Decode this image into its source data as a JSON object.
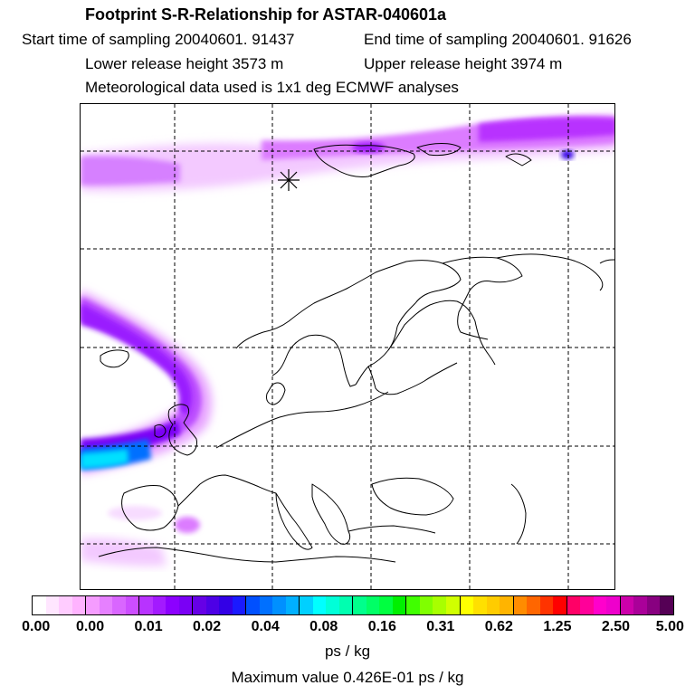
{
  "header": {
    "title": "Footprint S-R-Relationship for ASTAR-040601a",
    "start_time": "Start time of sampling 20040601. 91437",
    "end_time": "End time of sampling 20040601. 91626",
    "lower_release": "Lower release height 3573 m",
    "upper_release": "Upper release height 3974 m",
    "met_data": "Meteorological data used is 1x1 deg ECMWF analyses"
  },
  "map": {
    "region": "Europe / North Atlantic / Arctic",
    "receptor_marker": "asterisk"
  },
  "colorbar": {
    "tick_labels": [
      "0.00",
      "0.00",
      "0.01",
      "0.02",
      "0.04",
      "0.08",
      "0.16",
      "0.31",
      "0.62",
      "1.25",
      "2.50",
      "5.00"
    ],
    "colors": [
      "#ffffff",
      "#ffe6ff",
      "#ffccff",
      "#ffb3ff",
      "#f59cff",
      "#e680ff",
      "#d966ff",
      "#cc4dff",
      "#b833ff",
      "#a31aff",
      "#8c00ff",
      "#7a00f5",
      "#6600e6",
      "#4d00e6",
      "#3300e6",
      "#1a1aff",
      "#0050ff",
      "#0070ff",
      "#0090ff",
      "#00b0ff",
      "#00d0ff",
      "#00ffff",
      "#00ffd8",
      "#00ffb0",
      "#00ff8c",
      "#00ff66",
      "#00ff40",
      "#00f000",
      "#40ff00",
      "#80ff00",
      "#a8ff00",
      "#d0ff00",
      "#ffff00",
      "#ffe000",
      "#ffcc00",
      "#ffb400",
      "#ff8c00",
      "#ff6600",
      "#ff3300",
      "#ff0000",
      "#ff0066",
      "#ff0099",
      "#ff00cc",
      "#ee00cc",
      "#cc00aa",
      "#aa0099",
      "#880080",
      "#550055"
    ],
    "unit": "ps / kg"
  },
  "footer": {
    "max_value": "Maximum value  0.426E-01 ps / kg"
  }
}
